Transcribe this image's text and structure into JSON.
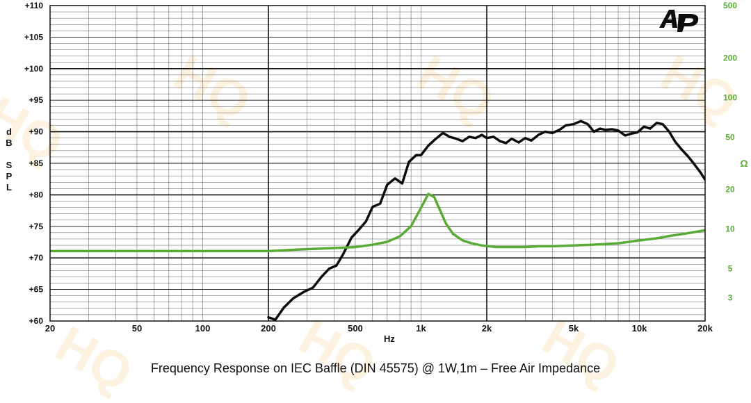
{
  "chart_data": {
    "type": "line",
    "title": "Frequency Response on IEC Baffle (DIN 45575)  @ 1W,1m – Free  Air Impedance",
    "xlabel": "Hz",
    "ylabel_left": [
      "d",
      "B",
      "S",
      "P",
      "L"
    ],
    "ylabel_right": "Ω",
    "x_scale": "log",
    "xlim": [
      20,
      20000
    ],
    "ylim_left": [
      60,
      110
    ],
    "ylim_right": [
      2,
      500
    ],
    "y_right_scale": "log",
    "grid": true,
    "x_ticks": [
      {
        "value": 20,
        "label": "20"
      },
      {
        "value": 50,
        "label": "50"
      },
      {
        "value": 100,
        "label": "100"
      },
      {
        "value": 200,
        "label": "200"
      },
      {
        "value": 500,
        "label": "500"
      },
      {
        "value": 1000,
        "label": "1k"
      },
      {
        "value": 2000,
        "label": "2k"
      },
      {
        "value": 5000,
        "label": "5k"
      },
      {
        "value": 10000,
        "label": "10k"
      },
      {
        "value": 20000,
        "label": "20k"
      }
    ],
    "y_left_ticks": [
      {
        "value": 60,
        "label": "+60"
      },
      {
        "value": 65,
        "label": "+65"
      },
      {
        "value": 70,
        "label": "+70"
      },
      {
        "value": 75,
        "label": "+75"
      },
      {
        "value": 80,
        "label": "+80"
      },
      {
        "value": 85,
        "label": "+85"
      },
      {
        "value": 90,
        "label": "+90"
      },
      {
        "value": 95,
        "label": "+95"
      },
      {
        "value": 100,
        "label": "+100"
      },
      {
        "value": 105,
        "label": "+105"
      },
      {
        "value": 110,
        "label": "+110"
      }
    ],
    "y_right_ticks": [
      {
        "value": 3,
        "label": "3"
      },
      {
        "value": 5,
        "label": "5"
      },
      {
        "value": 10,
        "label": "10"
      },
      {
        "value": 20,
        "label": "20"
      },
      {
        "value": 50,
        "label": "50"
      },
      {
        "value": 100,
        "label": "100"
      },
      {
        "value": 200,
        "label": "200"
      },
      {
        "value": 500,
        "label": "500"
      }
    ],
    "series": [
      {
        "color": "#0d0d0d",
        "axis": "left",
        "x": [
          200,
          215,
          235,
          260,
          290,
          320,
          350,
          380,
          410,
          440,
          480,
          520,
          560,
          600,
          650,
          700,
          760,
          820,
          880,
          950,
          1000,
          1080,
          1170,
          1260,
          1350,
          1450,
          1550,
          1660,
          1780,
          1900,
          2000,
          2150,
          2300,
          2450,
          2600,
          2800,
          3000,
          3200,
          3450,
          3700,
          4000,
          4300,
          4600,
          5000,
          5400,
          5800,
          6200,
          6600,
          7000,
          7500,
          8000,
          8600,
          9200,
          9800,
          10500,
          11200,
          12000,
          12800,
          13700,
          14600,
          15600,
          16700,
          17800,
          19000,
          20000
        ],
        "y": [
          60.6,
          60.2,
          62.1,
          63.6,
          64.6,
          65.3,
          67.0,
          68.3,
          68.8,
          70.6,
          73.2,
          74.5,
          75.8,
          78.1,
          78.6,
          81.6,
          82.6,
          81.8,
          85.2,
          86.3,
          86.3,
          87.8,
          88.9,
          89.8,
          89.2,
          88.9,
          88.5,
          89.2,
          89.0,
          89.5,
          89.0,
          89.2,
          88.5,
          88.2,
          88.9,
          88.3,
          89.0,
          88.6,
          89.5,
          90.0,
          89.8,
          90.3,
          91.0,
          91.2,
          91.7,
          91.2,
          90.0,
          90.5,
          90.3,
          90.4,
          90.2,
          89.4,
          89.7,
          89.9,
          90.8,
          90.5,
          91.4,
          91.2,
          90.0,
          88.4,
          87.2,
          86.1,
          84.9,
          83.6,
          82.4
        ]
      },
      {
        "color": "#5aab35",
        "axis": "right",
        "x": [
          20,
          50,
          100,
          200,
          280,
          350,
          420,
          500,
          600,
          700,
          800,
          900,
          1000,
          1080,
          1150,
          1220,
          1300,
          1400,
          1550,
          1700,
          1900,
          2200,
          2600,
          3000,
          3500,
          4000,
          5000,
          6000,
          7000,
          8000,
          9000,
          10000,
          12000,
          14000,
          16000,
          18000,
          20000
        ],
        "y": [
          6.8,
          6.8,
          6.8,
          6.8,
          7.0,
          7.1,
          7.2,
          7.3,
          7.6,
          8.0,
          8.8,
          10.5,
          14.5,
          18.5,
          17.5,
          14.0,
          11.0,
          9.2,
          8.2,
          7.8,
          7.5,
          7.3,
          7.3,
          7.3,
          7.4,
          7.4,
          7.5,
          7.6,
          7.7,
          7.8,
          8.0,
          8.2,
          8.5,
          8.9,
          9.2,
          9.5,
          9.8
        ]
      }
    ]
  }
}
